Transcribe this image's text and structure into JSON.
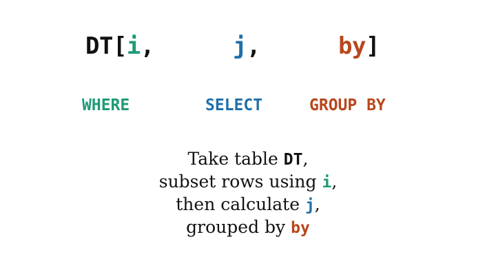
{
  "colors": {
    "black": "#111111",
    "green": "#1f9a78",
    "blue": "#1f6fa8",
    "orange": "#b8461c"
  },
  "syntax": {
    "dt_open": "DT[",
    "i": "i",
    "comma_i": ",",
    "j": "j",
    "comma_j": ",",
    "by": "by",
    "close": "]"
  },
  "sql": {
    "where": "WHERE",
    "select": "SELECT",
    "group_by": "GROUP BY"
  },
  "explanation": {
    "line1_pre": "Take table ",
    "line1_code": "DT",
    "line1_post": ",",
    "line2_pre": "subset rows using ",
    "line2_code": "i",
    "line2_post": ",",
    "line3_pre": "then calculate ",
    "line3_code": "j",
    "line3_post": ",",
    "line4_pre": "grouped by ",
    "line4_code": "by"
  }
}
